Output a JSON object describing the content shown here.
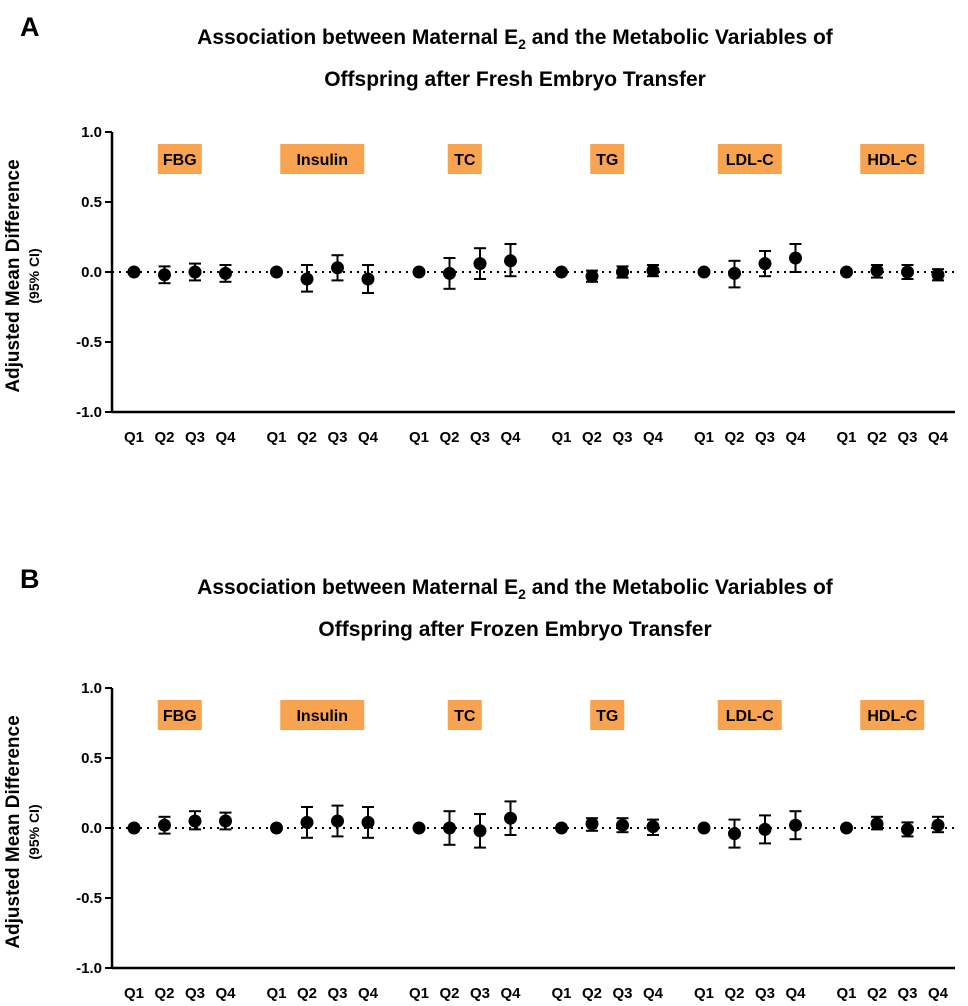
{
  "chart_data": [
    {
      "panel": "A",
      "type": "scatter",
      "title_prefix": "Association between Maternal E",
      "title_sub": "2",
      "title_suffix": " and the Metabolic Variables of",
      "title_line2": "Offspring after Fresh Embryo Transfer",
      "ylabel": "Adjusted Mean Difference",
      "ylabel_sub": "(95% CI)",
      "ylim": [
        -1.0,
        1.0
      ],
      "yticks": [
        "1.0",
        "0.5",
        "0.0",
        "-0.5",
        "-1.0"
      ],
      "quartiles": [
        "Q1",
        "Q2",
        "Q3",
        "Q4"
      ],
      "reference_line": 0.0,
      "groups": [
        {
          "name": "FBG",
          "points": [
            {
              "x": "Q1",
              "y": 0.0,
              "lo": 0.0,
              "hi": 0.0
            },
            {
              "x": "Q2",
              "y": -0.02,
              "lo": -0.08,
              "hi": 0.04
            },
            {
              "x": "Q3",
              "y": 0.0,
              "lo": -0.06,
              "hi": 0.06
            },
            {
              "x": "Q4",
              "y": -0.01,
              "lo": -0.07,
              "hi": 0.05
            }
          ]
        },
        {
          "name": "Insulin",
          "points": [
            {
              "x": "Q1",
              "y": 0.0,
              "lo": 0.0,
              "hi": 0.0
            },
            {
              "x": "Q2",
              "y": -0.05,
              "lo": -0.14,
              "hi": 0.05
            },
            {
              "x": "Q3",
              "y": 0.03,
              "lo": -0.06,
              "hi": 0.12
            },
            {
              "x": "Q4",
              "y": -0.05,
              "lo": -0.15,
              "hi": 0.05
            }
          ]
        },
        {
          "name": "TC",
          "points": [
            {
              "x": "Q1",
              "y": 0.0,
              "lo": 0.0,
              "hi": 0.0
            },
            {
              "x": "Q2",
              "y": -0.01,
              "lo": -0.12,
              "hi": 0.1
            },
            {
              "x": "Q3",
              "y": 0.06,
              "lo": -0.05,
              "hi": 0.17
            },
            {
              "x": "Q4",
              "y": 0.08,
              "lo": -0.03,
              "hi": 0.2
            }
          ]
        },
        {
          "name": "TG",
          "points": [
            {
              "x": "Q1",
              "y": 0.0,
              "lo": 0.0,
              "hi": 0.0
            },
            {
              "x": "Q2",
              "y": -0.03,
              "lo": -0.07,
              "hi": 0.01
            },
            {
              "x": "Q3",
              "y": 0.0,
              "lo": -0.04,
              "hi": 0.04
            },
            {
              "x": "Q4",
              "y": 0.01,
              "lo": -0.03,
              "hi": 0.05
            }
          ]
        },
        {
          "name": "LDL-C",
          "points": [
            {
              "x": "Q1",
              "y": 0.0,
              "lo": 0.0,
              "hi": 0.0
            },
            {
              "x": "Q2",
              "y": -0.01,
              "lo": -0.11,
              "hi": 0.08
            },
            {
              "x": "Q3",
              "y": 0.06,
              "lo": -0.03,
              "hi": 0.15
            },
            {
              "x": "Q4",
              "y": 0.1,
              "lo": 0.0,
              "hi": 0.2
            }
          ]
        },
        {
          "name": "HDL-C",
          "points": [
            {
              "x": "Q1",
              "y": 0.0,
              "lo": 0.0,
              "hi": 0.0
            },
            {
              "x": "Q2",
              "y": 0.01,
              "lo": -0.04,
              "hi": 0.05
            },
            {
              "x": "Q3",
              "y": 0.0,
              "lo": -0.05,
              "hi": 0.05
            },
            {
              "x": "Q4",
              "y": -0.02,
              "lo": -0.06,
              "hi": 0.02
            }
          ]
        }
      ]
    },
    {
      "panel": "B",
      "type": "scatter",
      "title_prefix": "Association between Maternal E",
      "title_sub": "2",
      "title_suffix": " and the Metabolic Variables of",
      "title_line2": "Offspring after Frozen Embryo Transfer",
      "ylabel": "Adjusted Mean Difference",
      "ylabel_sub": "(95% CI)",
      "ylim": [
        -1.0,
        1.0
      ],
      "yticks": [
        "1.0",
        "0.5",
        "0.0",
        "-0.5",
        "-1.0"
      ],
      "quartiles": [
        "Q1",
        "Q2",
        "Q3",
        "Q4"
      ],
      "reference_line": 0.0,
      "groups": [
        {
          "name": "FBG",
          "points": [
            {
              "x": "Q1",
              "y": 0.0,
              "lo": 0.0,
              "hi": 0.0
            },
            {
              "x": "Q2",
              "y": 0.02,
              "lo": -0.04,
              "hi": 0.08
            },
            {
              "x": "Q3",
              "y": 0.05,
              "lo": -0.01,
              "hi": 0.12
            },
            {
              "x": "Q4",
              "y": 0.05,
              "lo": -0.01,
              "hi": 0.11
            }
          ]
        },
        {
          "name": "Insulin",
          "points": [
            {
              "x": "Q1",
              "y": 0.0,
              "lo": 0.0,
              "hi": 0.0
            },
            {
              "x": "Q2",
              "y": 0.04,
              "lo": -0.07,
              "hi": 0.15
            },
            {
              "x": "Q3",
              "y": 0.05,
              "lo": -0.06,
              "hi": 0.16
            },
            {
              "x": "Q4",
              "y": 0.04,
              "lo": -0.07,
              "hi": 0.15
            }
          ]
        },
        {
          "name": "TC",
          "points": [
            {
              "x": "Q1",
              "y": 0.0,
              "lo": 0.0,
              "hi": 0.0
            },
            {
              "x": "Q2",
              "y": 0.0,
              "lo": -0.12,
              "hi": 0.12
            },
            {
              "x": "Q3",
              "y": -0.02,
              "lo": -0.14,
              "hi": 0.1
            },
            {
              "x": "Q4",
              "y": 0.07,
              "lo": -0.05,
              "hi": 0.19
            }
          ]
        },
        {
          "name": "TG",
          "points": [
            {
              "x": "Q1",
              "y": 0.0,
              "lo": 0.0,
              "hi": 0.0
            },
            {
              "x": "Q2",
              "y": 0.03,
              "lo": -0.02,
              "hi": 0.07
            },
            {
              "x": "Q3",
              "y": 0.02,
              "lo": -0.03,
              "hi": 0.07
            },
            {
              "x": "Q4",
              "y": 0.01,
              "lo": -0.05,
              "hi": 0.06
            }
          ]
        },
        {
          "name": "LDL-C",
          "points": [
            {
              "x": "Q1",
              "y": 0.0,
              "lo": 0.0,
              "hi": 0.0
            },
            {
              "x": "Q2",
              "y": -0.04,
              "lo": -0.14,
              "hi": 0.06
            },
            {
              "x": "Q3",
              "y": -0.01,
              "lo": -0.11,
              "hi": 0.09
            },
            {
              "x": "Q4",
              "y": 0.02,
              "lo": -0.08,
              "hi": 0.12
            }
          ]
        },
        {
          "name": "HDL-C",
          "points": [
            {
              "x": "Q1",
              "y": 0.0,
              "lo": 0.0,
              "hi": 0.0
            },
            {
              "x": "Q2",
              "y": 0.03,
              "lo": -0.01,
              "hi": 0.08
            },
            {
              "x": "Q3",
              "y": -0.01,
              "lo": -0.06,
              "hi": 0.04
            },
            {
              "x": "Q4",
              "y": 0.02,
              "lo": -0.03,
              "hi": 0.08
            }
          ]
        }
      ]
    }
  ],
  "colors": {
    "label_fill": "#f7a34f",
    "marker": "#000000",
    "reference_line": "#000000"
  }
}
